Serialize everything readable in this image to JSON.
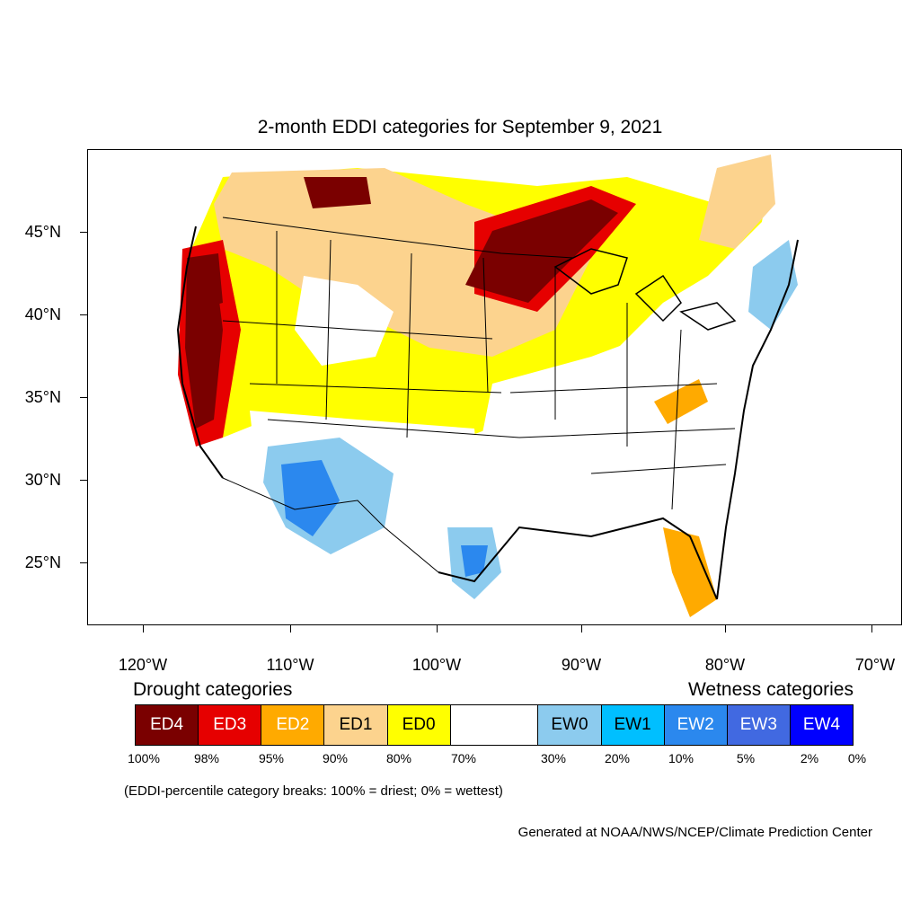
{
  "title": "2-month EDDI categories for September 9, 2021",
  "map": {
    "latitude_labels": [
      "45°N",
      "40°N",
      "35°N",
      "30°N",
      "25°N"
    ],
    "longitude_labels": [
      "120°W",
      "110°W",
      "100°W",
      "90°W",
      "80°W",
      "70°W"
    ],
    "colors": {
      "ED4": "#7a0000",
      "ED3": "#e60000",
      "ED2": "#ffaa00",
      "ED1": "#fcd38e",
      "ED0": "#ffff00",
      "neutral": "#ffffff",
      "EW0": "#8ccbee",
      "EW1": "#00bfff",
      "EW2": "#2b88ee",
      "EW3": "#4169e1",
      "EW4": "#0000ff"
    }
  },
  "legend": {
    "drought_heading": "Drought categories",
    "wetness_heading": "Wetness categories",
    "categories": [
      {
        "label": "ED4",
        "color": "#7a0000",
        "text_color": "#ffffff"
      },
      {
        "label": "ED3",
        "color": "#e60000",
        "text_color": "#ffffff"
      },
      {
        "label": "ED2",
        "color": "#ffaa00",
        "text_color": "#ffffff"
      },
      {
        "label": "ED1",
        "color": "#fcd38e",
        "text_color": "#000000"
      },
      {
        "label": "ED0",
        "color": "#ffff00",
        "text_color": "#000000"
      },
      {
        "label": "",
        "color": "#ffffff",
        "text_color": "#000000"
      },
      {
        "label": "EW0",
        "color": "#8ccbee",
        "text_color": "#000000"
      },
      {
        "label": "EW1",
        "color": "#00bfff",
        "text_color": "#000000"
      },
      {
        "label": "EW2",
        "color": "#2b88ee",
        "text_color": "#ffffff"
      },
      {
        "label": "EW3",
        "color": "#4169e1",
        "text_color": "#ffffff"
      },
      {
        "label": "EW4",
        "color": "#0000ff",
        "text_color": "#ffffff"
      }
    ],
    "percent_breaks": [
      "100%",
      "98%",
      "95%",
      "90%",
      "80%",
      "70%",
      "30%",
      "20%",
      "10%",
      "5%",
      "2%",
      "0%"
    ]
  },
  "note": "(EDDI-percentile category breaks: 100% = driest; 0% = wettest)",
  "credit": "Generated at NOAA/NWS/NCEP/Climate Prediction Center"
}
